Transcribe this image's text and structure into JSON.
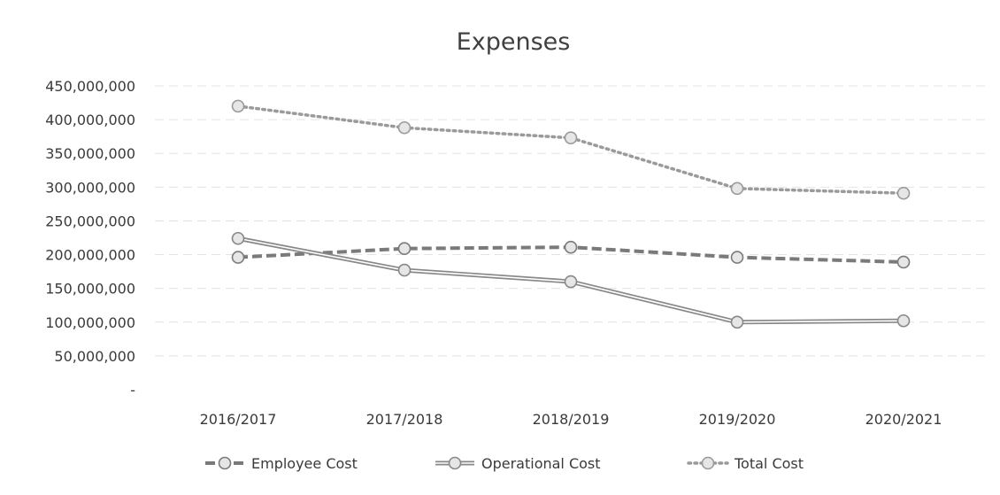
{
  "chart_data": {
    "type": "line",
    "title": "Expenses",
    "categories": [
      "2016/2017",
      "2017/2018",
      "2018/2019",
      "2019/2020",
      "2020/2021"
    ],
    "series": [
      {
        "name": "Employee Cost",
        "values": [
          196000000,
          209000000,
          211000000,
          196000000,
          189000000
        ],
        "color": "#7a7a7a",
        "style": "dashed"
      },
      {
        "name": "Operational Cost",
        "values": [
          224000000,
          177000000,
          160000000,
          100000000,
          102000000
        ],
        "color": "#888888",
        "style": "double-solid"
      },
      {
        "name": "Total Cost",
        "values": [
          420000000,
          388000000,
          373000000,
          298000000,
          291000000
        ],
        "color": "#9a9a9a",
        "style": "dotted"
      }
    ],
    "yaxis": {
      "min": 0,
      "max": 450000000,
      "step": 50000000,
      "tick_labels": [
        "-",
        "50,000,000",
        "100,000,000",
        "150,000,000",
        "200,000,000",
        "250,000,000",
        "300,000,000",
        "350,000,000",
        "400,000,000",
        "450,000,000"
      ]
    },
    "xlabel": "",
    "ylabel": "",
    "grid": true,
    "legend": "bottom"
  }
}
